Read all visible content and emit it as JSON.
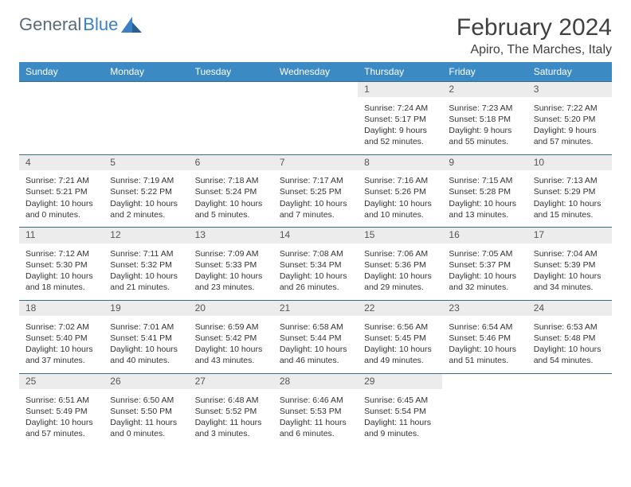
{
  "brand": {
    "part1": "General",
    "part2": "Blue"
  },
  "title": "February 2024",
  "location": "Apiro, The Marches, Italy",
  "colors": {
    "header_bg": "#3b8ac4",
    "header_text": "#ffffff",
    "daynum_bg": "#ececec",
    "border": "#3b6a8a",
    "logo_gray": "#5a6a7a",
    "logo_blue": "#3b7fc4"
  },
  "dow": [
    "Sunday",
    "Monday",
    "Tuesday",
    "Wednesday",
    "Thursday",
    "Friday",
    "Saturday"
  ],
  "weeks": [
    [
      null,
      null,
      null,
      null,
      {
        "n": "1",
        "sr": "Sunrise: 7:24 AM",
        "ss": "Sunset: 5:17 PM",
        "d1": "Daylight: 9 hours",
        "d2": "and 52 minutes."
      },
      {
        "n": "2",
        "sr": "Sunrise: 7:23 AM",
        "ss": "Sunset: 5:18 PM",
        "d1": "Daylight: 9 hours",
        "d2": "and 55 minutes."
      },
      {
        "n": "3",
        "sr": "Sunrise: 7:22 AM",
        "ss": "Sunset: 5:20 PM",
        "d1": "Daylight: 9 hours",
        "d2": "and 57 minutes."
      }
    ],
    [
      {
        "n": "4",
        "sr": "Sunrise: 7:21 AM",
        "ss": "Sunset: 5:21 PM",
        "d1": "Daylight: 10 hours",
        "d2": "and 0 minutes."
      },
      {
        "n": "5",
        "sr": "Sunrise: 7:19 AM",
        "ss": "Sunset: 5:22 PM",
        "d1": "Daylight: 10 hours",
        "d2": "and 2 minutes."
      },
      {
        "n": "6",
        "sr": "Sunrise: 7:18 AM",
        "ss": "Sunset: 5:24 PM",
        "d1": "Daylight: 10 hours",
        "d2": "and 5 minutes."
      },
      {
        "n": "7",
        "sr": "Sunrise: 7:17 AM",
        "ss": "Sunset: 5:25 PM",
        "d1": "Daylight: 10 hours",
        "d2": "and 7 minutes."
      },
      {
        "n": "8",
        "sr": "Sunrise: 7:16 AM",
        "ss": "Sunset: 5:26 PM",
        "d1": "Daylight: 10 hours",
        "d2": "and 10 minutes."
      },
      {
        "n": "9",
        "sr": "Sunrise: 7:15 AM",
        "ss": "Sunset: 5:28 PM",
        "d1": "Daylight: 10 hours",
        "d2": "and 13 minutes."
      },
      {
        "n": "10",
        "sr": "Sunrise: 7:13 AM",
        "ss": "Sunset: 5:29 PM",
        "d1": "Daylight: 10 hours",
        "d2": "and 15 minutes."
      }
    ],
    [
      {
        "n": "11",
        "sr": "Sunrise: 7:12 AM",
        "ss": "Sunset: 5:30 PM",
        "d1": "Daylight: 10 hours",
        "d2": "and 18 minutes."
      },
      {
        "n": "12",
        "sr": "Sunrise: 7:11 AM",
        "ss": "Sunset: 5:32 PM",
        "d1": "Daylight: 10 hours",
        "d2": "and 21 minutes."
      },
      {
        "n": "13",
        "sr": "Sunrise: 7:09 AM",
        "ss": "Sunset: 5:33 PM",
        "d1": "Daylight: 10 hours",
        "d2": "and 23 minutes."
      },
      {
        "n": "14",
        "sr": "Sunrise: 7:08 AM",
        "ss": "Sunset: 5:34 PM",
        "d1": "Daylight: 10 hours",
        "d2": "and 26 minutes."
      },
      {
        "n": "15",
        "sr": "Sunrise: 7:06 AM",
        "ss": "Sunset: 5:36 PM",
        "d1": "Daylight: 10 hours",
        "d2": "and 29 minutes."
      },
      {
        "n": "16",
        "sr": "Sunrise: 7:05 AM",
        "ss": "Sunset: 5:37 PM",
        "d1": "Daylight: 10 hours",
        "d2": "and 32 minutes."
      },
      {
        "n": "17",
        "sr": "Sunrise: 7:04 AM",
        "ss": "Sunset: 5:39 PM",
        "d1": "Daylight: 10 hours",
        "d2": "and 34 minutes."
      }
    ],
    [
      {
        "n": "18",
        "sr": "Sunrise: 7:02 AM",
        "ss": "Sunset: 5:40 PM",
        "d1": "Daylight: 10 hours",
        "d2": "and 37 minutes."
      },
      {
        "n": "19",
        "sr": "Sunrise: 7:01 AM",
        "ss": "Sunset: 5:41 PM",
        "d1": "Daylight: 10 hours",
        "d2": "and 40 minutes."
      },
      {
        "n": "20",
        "sr": "Sunrise: 6:59 AM",
        "ss": "Sunset: 5:42 PM",
        "d1": "Daylight: 10 hours",
        "d2": "and 43 minutes."
      },
      {
        "n": "21",
        "sr": "Sunrise: 6:58 AM",
        "ss": "Sunset: 5:44 PM",
        "d1": "Daylight: 10 hours",
        "d2": "and 46 minutes."
      },
      {
        "n": "22",
        "sr": "Sunrise: 6:56 AM",
        "ss": "Sunset: 5:45 PM",
        "d1": "Daylight: 10 hours",
        "d2": "and 49 minutes."
      },
      {
        "n": "23",
        "sr": "Sunrise: 6:54 AM",
        "ss": "Sunset: 5:46 PM",
        "d1": "Daylight: 10 hours",
        "d2": "and 51 minutes."
      },
      {
        "n": "24",
        "sr": "Sunrise: 6:53 AM",
        "ss": "Sunset: 5:48 PM",
        "d1": "Daylight: 10 hours",
        "d2": "and 54 minutes."
      }
    ],
    [
      {
        "n": "25",
        "sr": "Sunrise: 6:51 AM",
        "ss": "Sunset: 5:49 PM",
        "d1": "Daylight: 10 hours",
        "d2": "and 57 minutes."
      },
      {
        "n": "26",
        "sr": "Sunrise: 6:50 AM",
        "ss": "Sunset: 5:50 PM",
        "d1": "Daylight: 11 hours",
        "d2": "and 0 minutes."
      },
      {
        "n": "27",
        "sr": "Sunrise: 6:48 AM",
        "ss": "Sunset: 5:52 PM",
        "d1": "Daylight: 11 hours",
        "d2": "and 3 minutes."
      },
      {
        "n": "28",
        "sr": "Sunrise: 6:46 AM",
        "ss": "Sunset: 5:53 PM",
        "d1": "Daylight: 11 hours",
        "d2": "and 6 minutes."
      },
      {
        "n": "29",
        "sr": "Sunrise: 6:45 AM",
        "ss": "Sunset: 5:54 PM",
        "d1": "Daylight: 11 hours",
        "d2": "and 9 minutes."
      },
      null,
      null
    ]
  ]
}
